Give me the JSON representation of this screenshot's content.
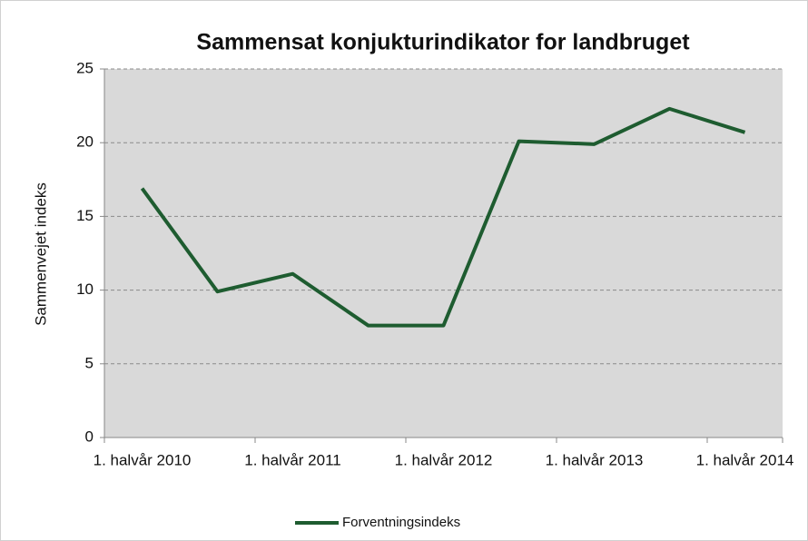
{
  "chart_data": {
    "type": "line",
    "title": "Sammensat konjukturindikator  for landbruget",
    "ylabel": "Sammenvejet indeks",
    "categories": [
      "1. halvår 2010",
      null,
      "1. halvår 2011",
      null,
      "1. halvår 2012",
      null,
      "1. halvår 2013",
      null,
      "1. halvår 2014"
    ],
    "series": [
      {
        "name": "Forventningsindeks",
        "color": "#1e5c30",
        "values": [
          16.9,
          9.9,
          11.1,
          7.6,
          7.6,
          20.1,
          19.9,
          22.3,
          20.7
        ]
      }
    ],
    "ylim": [
      0,
      25
    ],
    "yticks": [
      0,
      5,
      10,
      15,
      20,
      25
    ],
    "grid": true,
    "legend": "bottom"
  }
}
